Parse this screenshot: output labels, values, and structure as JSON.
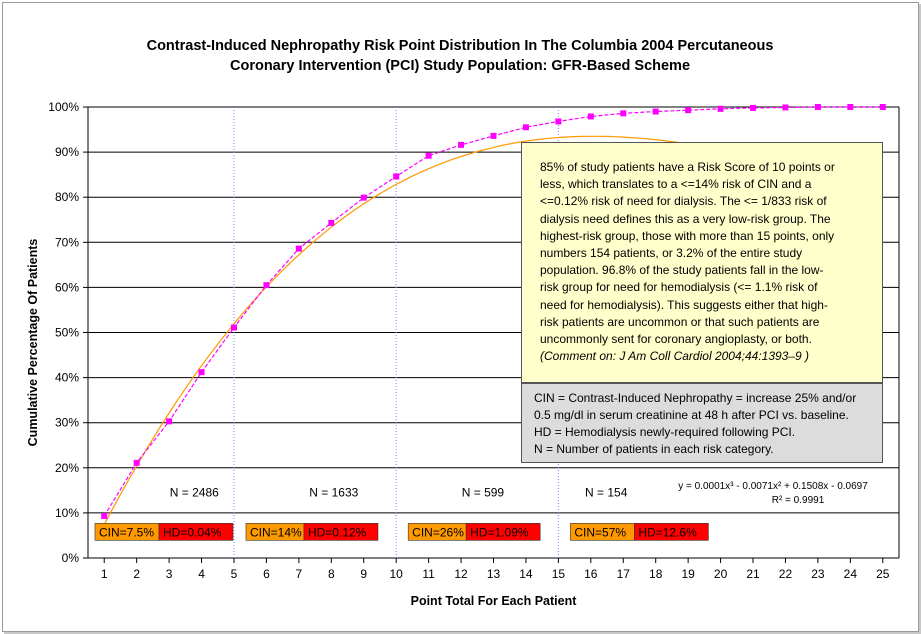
{
  "chart_data": {
    "type": "line",
    "title": "Contrast-Induced Nephropathy Risk Point Distribution In The Columbia 2004 Percutaneous Coronary Intervention (PCI) Study Population: GFR-Based Scheme",
    "title_lines": [
      "Contrast-Induced Nephropathy Risk Point Distribution In The Columbia 2004 Percutaneous",
      "Coronary Intervention (PCI) Study Population: GFR-Based Scheme"
    ],
    "xlabel": "Point Total For Each Patient",
    "ylabel": "Cumulative Percentage Of Patients",
    "x": [
      1,
      2,
      3,
      4,
      5,
      6,
      7,
      8,
      9,
      10,
      11,
      12,
      13,
      14,
      15,
      16,
      17,
      18,
      19,
      20,
      21,
      22,
      23,
      24,
      25
    ],
    "x_tick_labels": [
      "1",
      "2",
      "3",
      "4",
      "5",
      "6",
      "7",
      "8",
      "9",
      "10",
      "11",
      "12",
      "13",
      "14",
      "15",
      "16",
      "17",
      "18",
      "19",
      "20",
      "21",
      "22",
      "23",
      "24",
      "25"
    ],
    "y_tick_labels": [
      "0%",
      "10%",
      "20%",
      "30%",
      "40%",
      "50%",
      "60%",
      "70%",
      "80%",
      "90%",
      "100%"
    ],
    "xlim": [
      0.5,
      25.5
    ],
    "ylim": [
      0,
      100
    ],
    "grid": "horizontal",
    "series": [
      {
        "values": [
          9.3,
          21.1,
          30.3,
          41.2,
          51.1,
          60.5,
          68.6,
          74.3,
          79.9,
          84.6,
          89.2,
          91.6,
          93.6,
          95.5,
          96.8,
          97.9,
          98.6,
          99.0,
          99.3,
          99.6,
          99.8,
          99.9,
          100,
          100,
          100
        ],
        "color": "#ff00ff",
        "marker": "square"
      }
    ],
    "trendline": {
      "type": "polynomial-3",
      "color": "#ff9900",
      "coefficients": [
        0.0001,
        -0.0071,
        0.1508,
        -0.0697
      ],
      "equation_text": "y = 0.0001x³ - 0.0071x² + 0.1508x - 0.0697",
      "r2_text": "R² = 0.9991"
    },
    "dividers_x": [
      5,
      10,
      15
    ],
    "risk_groups": [
      {
        "n_label": "N = 2486",
        "cin": "CIN=7.5%",
        "hd": "HD=0.04%"
      },
      {
        "n_label": "N = 1633",
        "cin": "CIN=14%",
        "hd": "HD=0.12%"
      },
      {
        "n_label": "N = 599",
        "cin": "CIN=26%",
        "hd": "HD=1.09%"
      },
      {
        "n_label": "N = 154",
        "cin": "CIN=57%",
        "hd": "HD=12.6%"
      }
    ],
    "colors": {
      "cin_box": "#ff9900",
      "hd_box": "#ff0000",
      "divider": "#8080ff",
      "note_main_bg": "#ffffcc",
      "note_defs_bg": "#dcdcdc"
    }
  },
  "notes": {
    "main_lines": [
      "85% of study patients have a Risk Score of 10 points or",
      "less, which translates to a <=14% risk of CIN and a",
      "<=0.12% risk of need for dialysis. The <= 1/833 risk of",
      "dialysis need defines this as a very low-risk group. The",
      "highest-risk group, those with more than 15 points, only",
      "numbers 154 patients, or 3.2% of the entire study",
      "population. 96.8% of the study patients fall in the low-",
      "risk group for need for hemodialysis (<= 1.1% risk of",
      "need for hemodialysis). This suggests either that high-",
      "risk patients are uncommon or that such patients are",
      "uncommonly sent for coronary angioplasty, or both."
    ],
    "reference": "(Comment on: J Am Coll Cardiol 2004;44:1393–9 )",
    "defs_lines": [
      "CIN = Contrast-Induced Nephropathy = increase 25% and/or",
      "0.5 mg/dl in serum creatinine at 48 h after PCI vs. baseline.",
      "HD = Hemodialysis newly-required following PCI.",
      "N = Number of patients in each risk category."
    ]
  }
}
